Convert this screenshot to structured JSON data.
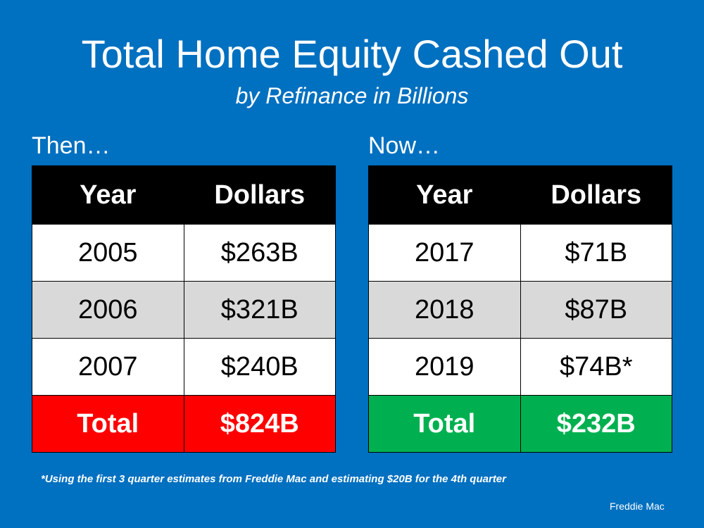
{
  "title": "Total Home Equity Cashed Out",
  "subtitle": "by Refinance in Billions",
  "then": {
    "label": "Then…",
    "headers": [
      "Year",
      "Dollars"
    ],
    "rows": [
      {
        "year": "2005",
        "dollars": "$263B"
      },
      {
        "year": "2006",
        "dollars": "$321B"
      },
      {
        "year": "2007",
        "dollars": "$240B"
      }
    ],
    "total": {
      "label": "Total",
      "dollars": "$824B",
      "color": "#FF0000"
    }
  },
  "now": {
    "label": "Now…",
    "headers": [
      "Year",
      "Dollars"
    ],
    "rows": [
      {
        "year": "2017",
        "dollars": "$71B"
      },
      {
        "year": "2018",
        "dollars": "$87B"
      },
      {
        "year": "2019",
        "dollars": "$74B*"
      }
    ],
    "total": {
      "label": "Total",
      "dollars": "$232B",
      "color": "#00B050"
    }
  },
  "footnote": "*Using the first 3 quarter estimates from Freddie Mac and estimating $20B for the 4th quarter",
  "source": "Freddie Mac",
  "colors": {
    "background": "#0070C0"
  }
}
